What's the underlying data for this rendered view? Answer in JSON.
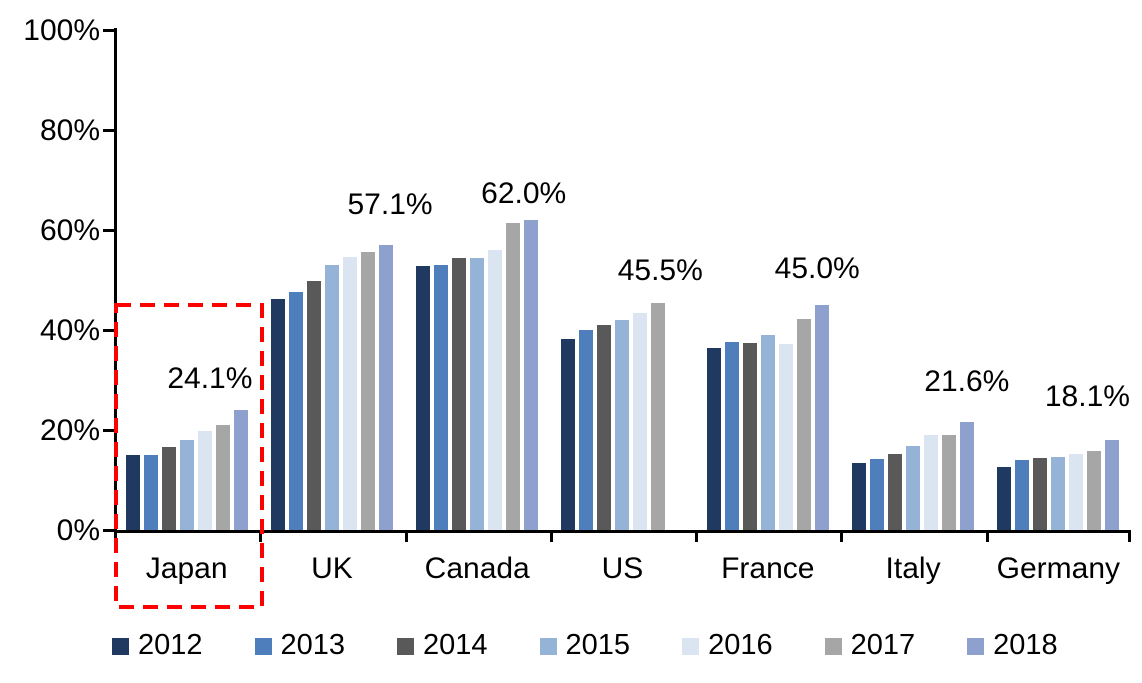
{
  "chart_data": {
    "type": "bar",
    "title": "",
    "xlabel": "",
    "ylabel": "",
    "categories": [
      "Japan",
      "UK",
      "Canada",
      "US",
      "France",
      "Italy",
      "Germany"
    ],
    "series": [
      {
        "name": "2012",
        "color": "#1F3960",
        "values": [
          15.0,
          46.2,
          52.8,
          38.2,
          36.5,
          13.4,
          12.6
        ]
      },
      {
        "name": "2013",
        "color": "#4E7EBC",
        "values": [
          15.1,
          47.6,
          53.1,
          40.0,
          37.7,
          14.2,
          14.0
        ]
      },
      {
        "name": "2014",
        "color": "#595959",
        "values": [
          16.7,
          49.8,
          54.5,
          41.0,
          37.5,
          15.2,
          14.4
        ]
      },
      {
        "name": "2015",
        "color": "#95B3D7",
        "values": [
          18.0,
          53.0,
          54.5,
          42.0,
          39.1,
          16.8,
          14.6
        ]
      },
      {
        "name": "2016",
        "color": "#DBE5F1",
        "values": [
          19.9,
          54.7,
          56.0,
          43.5,
          37.3,
          19.0,
          15.2
        ]
      },
      {
        "name": "2017",
        "color": "#A6A6A6",
        "values": [
          21.0,
          55.7,
          61.5,
          45.5,
          42.3,
          19.1,
          15.8
        ]
      },
      {
        "name": "2018",
        "color": "#8EA1CE",
        "values": [
          24.1,
          57.1,
          62.0,
          null,
          45.0,
          21.6,
          18.1
        ]
      }
    ],
    "value_labels": [
      "24.1%",
      "57.1%",
      "62.0%",
      "45.5%",
      "45.0%",
      "21.6%",
      "18.1%"
    ],
    "y_ticks": [
      "0%",
      "20%",
      "40%",
      "60%",
      "80%",
      "100%"
    ],
    "ylim": [
      0,
      100
    ],
    "grid": false,
    "legend_position": "bottom",
    "highlight": {
      "category": "Japan",
      "shape": "dashed-rectangle",
      "color": "#FF0000"
    }
  }
}
